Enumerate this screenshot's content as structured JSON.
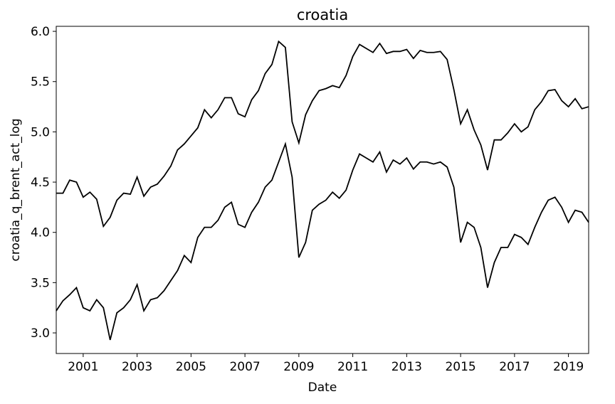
{
  "chart_data": {
    "type": "line",
    "title": "croatia",
    "x_label": "Date",
    "y_label": "croatia_q_brent_act_log",
    "x": [
      2000,
      2000.25,
      2000.5,
      2000.75,
      2001,
      2001.25,
      2001.5,
      2001.75,
      2002,
      2002.25,
      2002.5,
      2002.75,
      2003,
      2003.25,
      2003.5,
      2003.75,
      2004,
      2004.25,
      2004.5,
      2004.75,
      2005,
      2005.25,
      2005.5,
      2005.75,
      2006,
      2006.25,
      2006.5,
      2006.75,
      2007,
      2007.25,
      2007.5,
      2007.75,
      2008,
      2008.25,
      2008.5,
      2008.75,
      2009,
      2009.25,
      2009.5,
      2009.75,
      2010,
      2010.25,
      2010.5,
      2010.75,
      2011,
      2011.25,
      2011.5,
      2011.75,
      2012,
      2012.25,
      2012.5,
      2012.75,
      2013,
      2013.25,
      2013.5,
      2013.75,
      2014,
      2014.25,
      2014.5,
      2014.75,
      2015,
      2015.25,
      2015.5,
      2015.75,
      2016,
      2016.25,
      2016.5,
      2016.75,
      2017,
      2017.25,
      2017.5,
      2017.75,
      2018,
      2018.25,
      2018.5,
      2018.75,
      2019,
      2019.25,
      2019.5,
      2019.75
    ],
    "series": [
      {
        "color": "#000000",
        "values": [
          4.39,
          4.39,
          4.52,
          4.5,
          4.35,
          4.4,
          4.33,
          4.06,
          4.15,
          4.32,
          4.39,
          4.38,
          4.55,
          4.36,
          4.45,
          4.48,
          4.56,
          4.66,
          4.82,
          4.88,
          4.96,
          5.04,
          5.22,
          5.14,
          5.22,
          5.34,
          5.34,
          5.18,
          5.15,
          5.32,
          5.41,
          5.58,
          5.67,
          5.9,
          5.84,
          5.1,
          4.89,
          5.17,
          5.31,
          5.41,
          5.43,
          5.46,
          5.44,
          5.56,
          5.75,
          5.87,
          5.83,
          5.79,
          5.88,
          5.78,
          5.8,
          5.8,
          5.82,
          5.73,
          5.81,
          5.79,
          5.79,
          5.8,
          5.72,
          5.42,
          5.08,
          5.22,
          5.02,
          4.87,
          4.62,
          4.92,
          4.92,
          4.99,
          5.08,
          5.0,
          5.05,
          5.22,
          5.3,
          5.41,
          5.42,
          5.31,
          5.25,
          5.33,
          5.23,
          5.25
        ]
      },
      {
        "color": "#000000",
        "values": [
          3.22,
          3.32,
          3.38,
          3.45,
          3.25,
          3.22,
          3.33,
          3.25,
          2.93,
          3.2,
          3.25,
          3.33,
          3.48,
          3.22,
          3.33,
          3.35,
          3.42,
          3.52,
          3.62,
          3.77,
          3.7,
          3.95,
          4.05,
          4.05,
          4.12,
          4.25,
          4.3,
          4.08,
          4.05,
          4.2,
          4.3,
          4.45,
          4.52,
          4.7,
          4.88,
          4.55,
          3.75,
          3.9,
          4.22,
          4.28,
          4.32,
          4.4,
          4.34,
          4.42,
          4.62,
          4.78,
          4.74,
          4.7,
          4.8,
          4.6,
          4.72,
          4.68,
          4.74,
          4.63,
          4.7,
          4.7,
          4.68,
          4.7,
          4.65,
          4.45,
          3.9,
          4.1,
          4.05,
          3.85,
          3.45,
          3.7,
          3.85,
          3.85,
          3.98,
          3.95,
          3.88,
          4.05,
          4.2,
          4.32,
          4.35,
          4.25,
          4.1,
          4.22,
          4.2,
          4.1
        ]
      }
    ],
    "xlim": [
      2000,
      2019.75
    ],
    "xticks": [
      2001,
      2003,
      2005,
      2007,
      2009,
      2011,
      2013,
      2015,
      2017,
      2019
    ],
    "ylim": [
      2.795,
      6.05
    ],
    "yticks": [
      {
        "value": 3,
        "label": "3.0"
      },
      3.5,
      {
        "value": 4,
        "label": "4.0"
      },
      4.5,
      {
        "value": 5,
        "label": "5.0"
      },
      5.5,
      {
        "value": 6,
        "label": "6.0"
      }
    ],
    "grid": false
  }
}
